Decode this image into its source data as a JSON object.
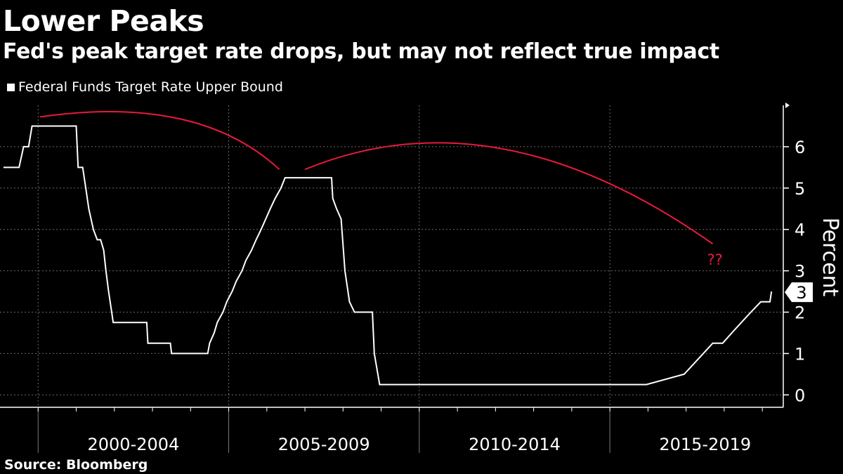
{
  "title": "Lower Peaks",
  "subtitle": "Fed's peak target rate drops, but may not reflect true impact",
  "source": "Source: Bloomberg",
  "colors": {
    "background": "#000000",
    "series": "#ffffff",
    "arc": "#e8193c",
    "grid": "#6a6a6a"
  },
  "chart_data": {
    "type": "line",
    "legend": "Federal Funds Target Rate Upper Bound",
    "legend_position": "top-left",
    "ylabel": "Percent",
    "ylim": [
      -0.3,
      7
    ],
    "yticks": [
      0,
      1,
      2,
      3,
      4,
      5,
      6
    ],
    "grid": true,
    "x_groups": [
      "2000-2004",
      "2005-2009",
      "2010-2014",
      "2015-2019"
    ],
    "last_value_label": "3",
    "annotation": "??",
    "series": [
      {
        "name": "Federal Funds Target Rate Upper Bound",
        "x_year_decimal_and_value": [
          [
            1999.09,
            5.5
          ],
          [
            1999.5,
            5.5
          ],
          [
            1999.62,
            6.0
          ],
          [
            1999.75,
            6.0
          ],
          [
            1999.84,
            6.5
          ],
          [
            2000.0,
            6.5
          ],
          [
            2000.36,
            6.5
          ],
          [
            2000.48,
            6.5
          ],
          [
            2001.0,
            6.5
          ],
          [
            2001.05,
            5.5
          ],
          [
            2001.17,
            5.5
          ],
          [
            2001.25,
            5.0
          ],
          [
            2001.33,
            4.5
          ],
          [
            2001.45,
            4.0
          ],
          [
            2001.55,
            3.75
          ],
          [
            2001.64,
            3.75
          ],
          [
            2001.72,
            3.5
          ],
          [
            2001.78,
            3.0
          ],
          [
            2001.85,
            2.5
          ],
          [
            2001.93,
            2.0
          ],
          [
            2001.97,
            1.75
          ],
          [
            2002.85,
            1.75
          ],
          [
            2002.88,
            1.25
          ],
          [
            2003.47,
            1.25
          ],
          [
            2003.5,
            1.0
          ],
          [
            2004.45,
            1.0
          ],
          [
            2004.5,
            1.25
          ],
          [
            2004.62,
            1.5
          ],
          [
            2004.7,
            1.75
          ],
          [
            2004.85,
            2.0
          ],
          [
            2004.95,
            2.25
          ],
          [
            2005.09,
            2.5
          ],
          [
            2005.2,
            2.75
          ],
          [
            2005.35,
            3.0
          ],
          [
            2005.45,
            3.25
          ],
          [
            2005.6,
            3.5
          ],
          [
            2005.72,
            3.75
          ],
          [
            2005.85,
            4.0
          ],
          [
            2005.97,
            4.25
          ],
          [
            2006.09,
            4.5
          ],
          [
            2006.22,
            4.75
          ],
          [
            2006.37,
            5.0
          ],
          [
            2006.48,
            5.25
          ],
          [
            2007.7,
            5.25
          ],
          [
            2007.73,
            4.75
          ],
          [
            2007.83,
            4.5
          ],
          [
            2007.95,
            4.25
          ],
          [
            2008.05,
            3.0
          ],
          [
            2008.17,
            2.25
          ],
          [
            2008.3,
            2.0
          ],
          [
            2008.77,
            2.0
          ],
          [
            2008.82,
            1.0
          ],
          [
            2008.96,
            0.25
          ],
          [
            2015.96,
            0.25
          ],
          [
            2016.95,
            0.5
          ],
          [
            2017.2,
            0.75
          ],
          [
            2017.45,
            1.0
          ],
          [
            2017.7,
            1.25
          ],
          [
            2017.96,
            1.25
          ],
          [
            2018.2,
            1.5
          ],
          [
            2018.45,
            1.75
          ],
          [
            2018.7,
            2.0
          ],
          [
            2018.96,
            2.25
          ],
          [
            2019.2,
            2.25
          ],
          [
            2019.24,
            2.5
          ]
        ]
      }
    ]
  }
}
